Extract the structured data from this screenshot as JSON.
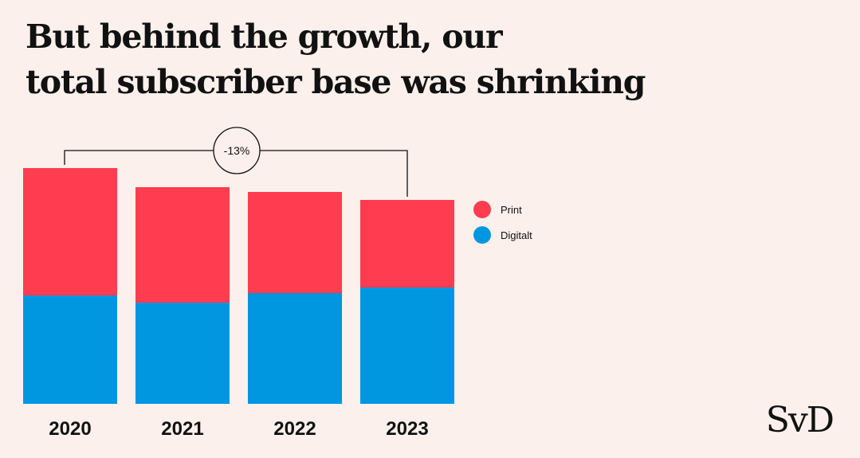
{
  "title_lines": [
    "But behind the growth, our",
    "total subscriber base was shrinking"
  ],
  "logo": "SvD",
  "chart_data": {
    "type": "bar",
    "stacked": true,
    "categories": [
      "2020",
      "2021",
      "2022",
      "2023"
    ],
    "series": [
      {
        "name": "Digitalt",
        "color": "#0096e0",
        "values": [
          136,
          127,
          139,
          146
        ]
      },
      {
        "name": "Print",
        "color": "#ff3c50",
        "values": [
          160,
          145,
          127,
          110
        ]
      }
    ],
    "legend_order": [
      "Print",
      "Digitalt"
    ],
    "ylim": [
      0,
      300
    ],
    "annotation": {
      "label": "-13%",
      "from": "2020",
      "to": "2023"
    },
    "grid": false,
    "legend_position": "right"
  }
}
